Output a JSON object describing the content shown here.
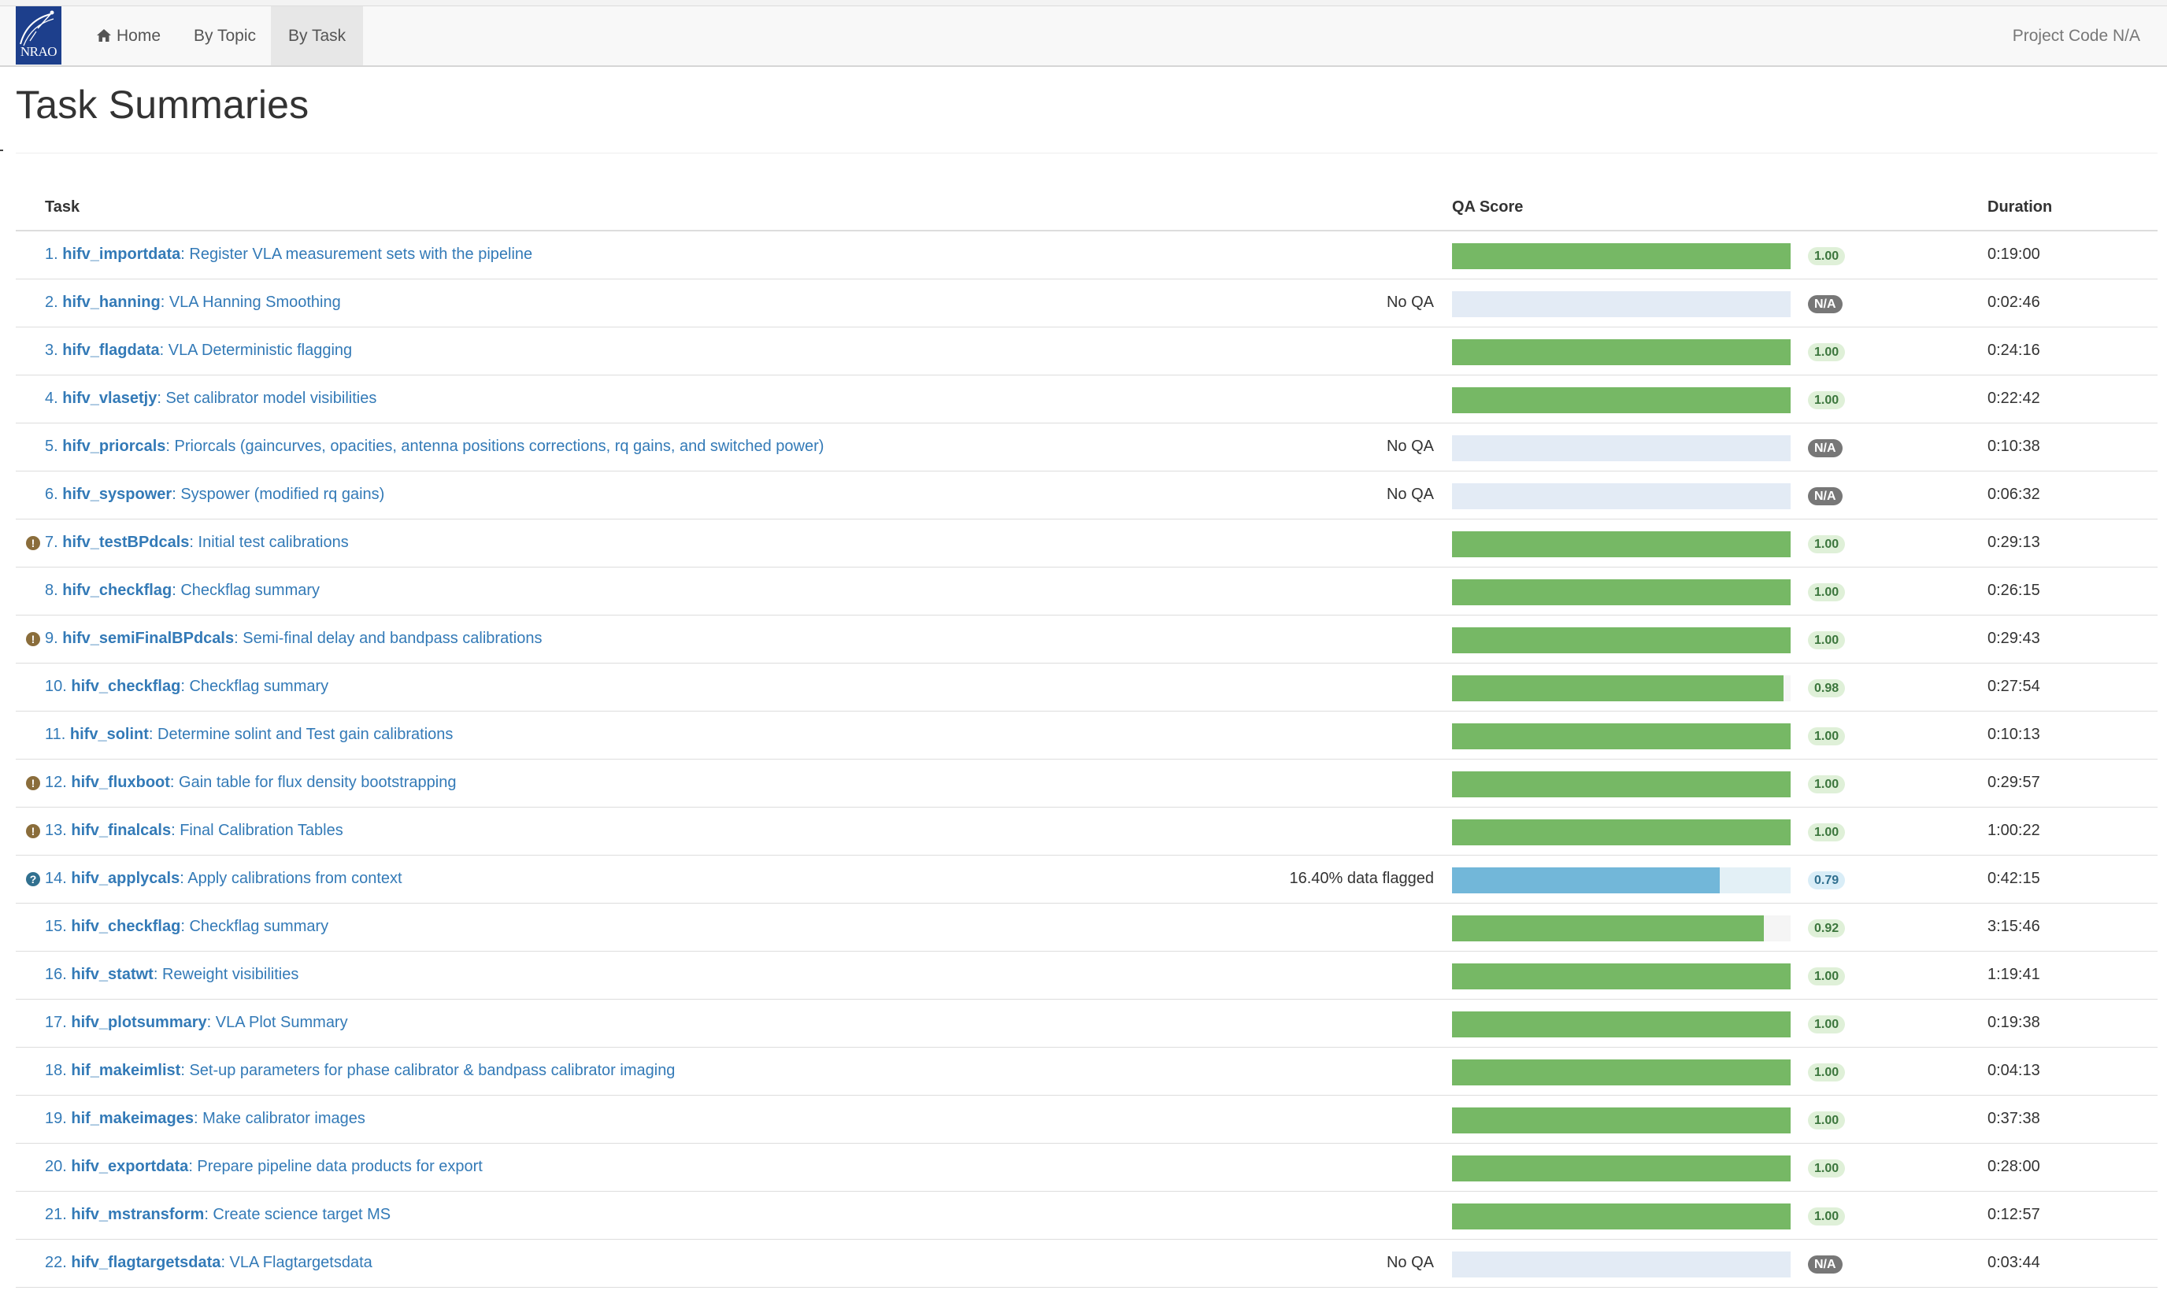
{
  "navbar": {
    "logo_text": "NRAO",
    "items": [
      "Home",
      "By Topic",
      "By Task"
    ],
    "active": "By Task",
    "project_code": "Project Code N/A"
  },
  "page": {
    "title": "Task Summaries"
  },
  "table": {
    "headers": {
      "task": "Task",
      "qa": "QA Score",
      "duration": "Duration"
    },
    "rows": [
      {
        "num": "1.",
        "name": "hifv_importdata",
        "desc": ": Register VLA measurement sets with the pipeline",
        "note": "",
        "score": 1.0,
        "label": "1.00",
        "duration": "0:19:00",
        "icon": ""
      },
      {
        "num": "2.",
        "name": "hifv_hanning",
        "desc": ": VLA Hanning Smoothing",
        "note": "No QA",
        "score": null,
        "label": "N/A",
        "duration": "0:02:46",
        "icon": ""
      },
      {
        "num": "3.",
        "name": "hifv_flagdata",
        "desc": ": VLA Deterministic flagging",
        "note": "",
        "score": 1.0,
        "label": "1.00",
        "duration": "0:24:16",
        "icon": ""
      },
      {
        "num": "4.",
        "name": "hifv_vlasetjy",
        "desc": ": Set calibrator model visibilities",
        "note": "",
        "score": 1.0,
        "label": "1.00",
        "duration": "0:22:42",
        "icon": ""
      },
      {
        "num": "5.",
        "name": "hifv_priorcals",
        "desc": ": Priorcals (gaincurves, opacities, antenna positions corrections, rq gains, and switched power)",
        "note": "No QA",
        "score": null,
        "label": "N/A",
        "duration": "0:10:38",
        "icon": ""
      },
      {
        "num": "6.",
        "name": "hifv_syspower",
        "desc": ": Syspower (modified rq gains)",
        "note": "No QA",
        "score": null,
        "label": "N/A",
        "duration": "0:06:32",
        "icon": ""
      },
      {
        "num": "7.",
        "name": "hifv_testBPdcals",
        "desc": ": Initial test calibrations",
        "note": "",
        "score": 1.0,
        "label": "1.00",
        "duration": "0:29:13",
        "icon": "warn"
      },
      {
        "num": "8.",
        "name": "hifv_checkflag",
        "desc": ": Checkflag summary",
        "note": "",
        "score": 1.0,
        "label": "1.00",
        "duration": "0:26:15",
        "icon": ""
      },
      {
        "num": "9.",
        "name": "hifv_semiFinalBPdcals",
        "desc": ": Semi-final delay and bandpass calibrations",
        "note": "",
        "score": 1.0,
        "label": "1.00",
        "duration": "0:29:43",
        "icon": "warn"
      },
      {
        "num": "10.",
        "name": "hifv_checkflag",
        "desc": ": Checkflag summary",
        "note": "",
        "score": 0.98,
        "label": "0.98",
        "duration": "0:27:54",
        "icon": ""
      },
      {
        "num": "11.",
        "name": "hifv_solint",
        "desc": ": Determine solint and Test gain calibrations",
        "note": "",
        "score": 1.0,
        "label": "1.00",
        "duration": "0:10:13",
        "icon": ""
      },
      {
        "num": "12.",
        "name": "hifv_fluxboot",
        "desc": ": Gain table for flux density bootstrapping",
        "note": "",
        "score": 1.0,
        "label": "1.00",
        "duration": "0:29:57",
        "icon": "warn"
      },
      {
        "num": "13.",
        "name": "hifv_finalcals",
        "desc": ": Final Calibration Tables",
        "note": "",
        "score": 1.0,
        "label": "1.00",
        "duration": "1:00:22",
        "icon": "warn"
      },
      {
        "num": "14.",
        "name": "hifv_applycals",
        "desc": ": Apply calibrations from context",
        "note": "16.40% data flagged",
        "score": 0.79,
        "label": "0.79",
        "duration": "0:42:15",
        "icon": "info"
      },
      {
        "num": "15.",
        "name": "hifv_checkflag",
        "desc": ": Checkflag summary",
        "note": "",
        "score": 0.92,
        "label": "0.92",
        "duration": "3:15:46",
        "icon": ""
      },
      {
        "num": "16.",
        "name": "hifv_statwt",
        "desc": ": Reweight visibilities",
        "note": "",
        "score": 1.0,
        "label": "1.00",
        "duration": "1:19:41",
        "icon": ""
      },
      {
        "num": "17.",
        "name": "hifv_plotsummary",
        "desc": ": VLA Plot Summary",
        "note": "",
        "score": 1.0,
        "label": "1.00",
        "duration": "0:19:38",
        "icon": ""
      },
      {
        "num": "18.",
        "name": "hif_makeimlist",
        "desc": ": Set-up parameters for phase calibrator & bandpass calibrator imaging",
        "note": "",
        "score": 1.0,
        "label": "1.00",
        "duration": "0:04:13",
        "icon": ""
      },
      {
        "num": "19.",
        "name": "hif_makeimages",
        "desc": ": Make calibrator images",
        "note": "",
        "score": 1.0,
        "label": "1.00",
        "duration": "0:37:38",
        "icon": ""
      },
      {
        "num": "20.",
        "name": "hifv_exportdata",
        "desc": ": Prepare pipeline data products for export",
        "note": "",
        "score": 1.0,
        "label": "1.00",
        "duration": "0:28:00",
        "icon": ""
      },
      {
        "num": "21.",
        "name": "hifv_mstransform",
        "desc": ": Create science target MS",
        "note": "",
        "score": 1.0,
        "label": "1.00",
        "duration": "0:12:57",
        "icon": ""
      },
      {
        "num": "22.",
        "name": "hifv_flagtargetsdata",
        "desc": ": VLA Flagtargetsdata",
        "note": "No QA",
        "score": null,
        "label": "N/A",
        "duration": "0:03:44",
        "icon": ""
      }
    ]
  }
}
